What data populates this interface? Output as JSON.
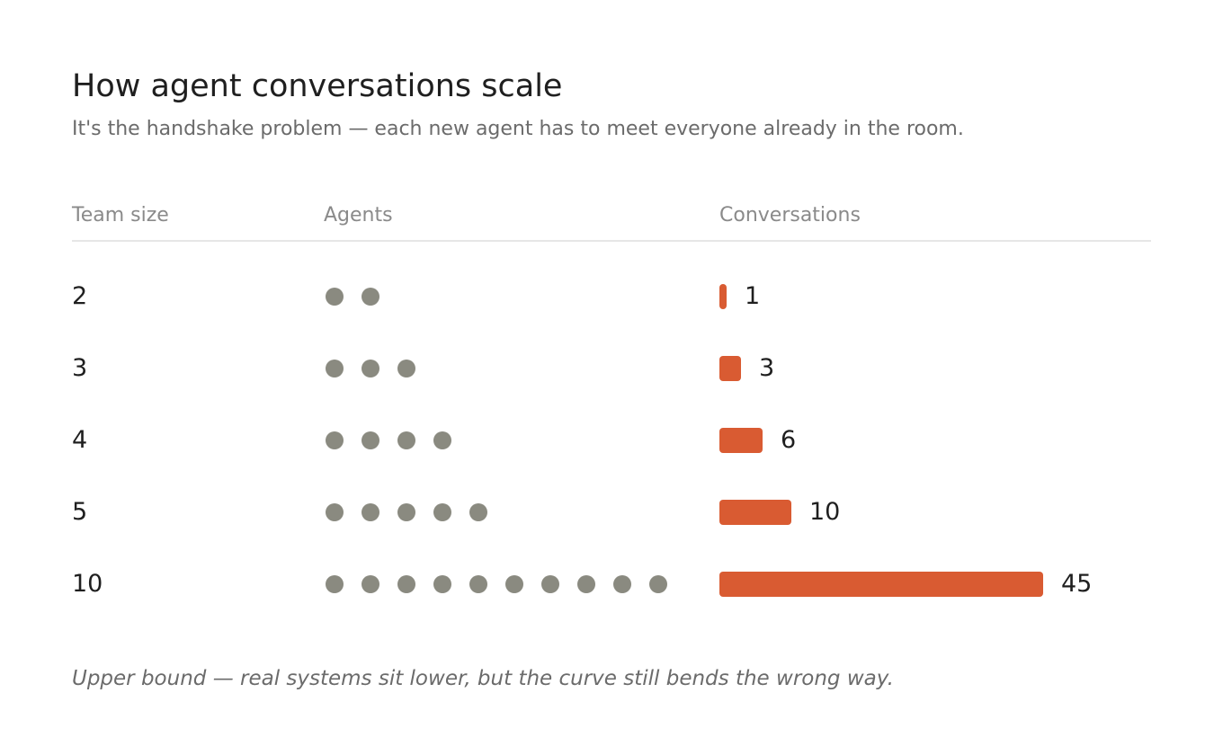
{
  "header": {
    "title": "How agent conversations scale",
    "subtitle": "It's the handshake problem — each new agent has to meet everyone already in the room."
  },
  "columns": {
    "team_size": "Team size",
    "agents": "Agents",
    "conversations": "Conversations"
  },
  "chart_data": {
    "type": "bar",
    "orientation": "horizontal",
    "title": "How agent conversations scale",
    "subtitle": "It's the handshake problem — each new agent has to meet everyone already in the room.",
    "column_headers": [
      "Team size",
      "Agents",
      "Conversations"
    ],
    "categories": [
      "2",
      "3",
      "4",
      "5",
      "10"
    ],
    "agents": [
      2,
      3,
      4,
      5,
      10
    ],
    "values": [
      1,
      3,
      6,
      10,
      45
    ],
    "xlim": [
      0,
      45
    ],
    "grid": false,
    "legend": "none"
  },
  "footnote": "Upper bound — real systems sit lower, but the curve still bends the wrong way.",
  "colors": {
    "bar": "#d95b32",
    "dot": "#8a8a80",
    "text": "#1f1f1f",
    "muted": "#6b6b6b"
  },
  "icons": {
    "agent": "agent-dot-icon"
  }
}
